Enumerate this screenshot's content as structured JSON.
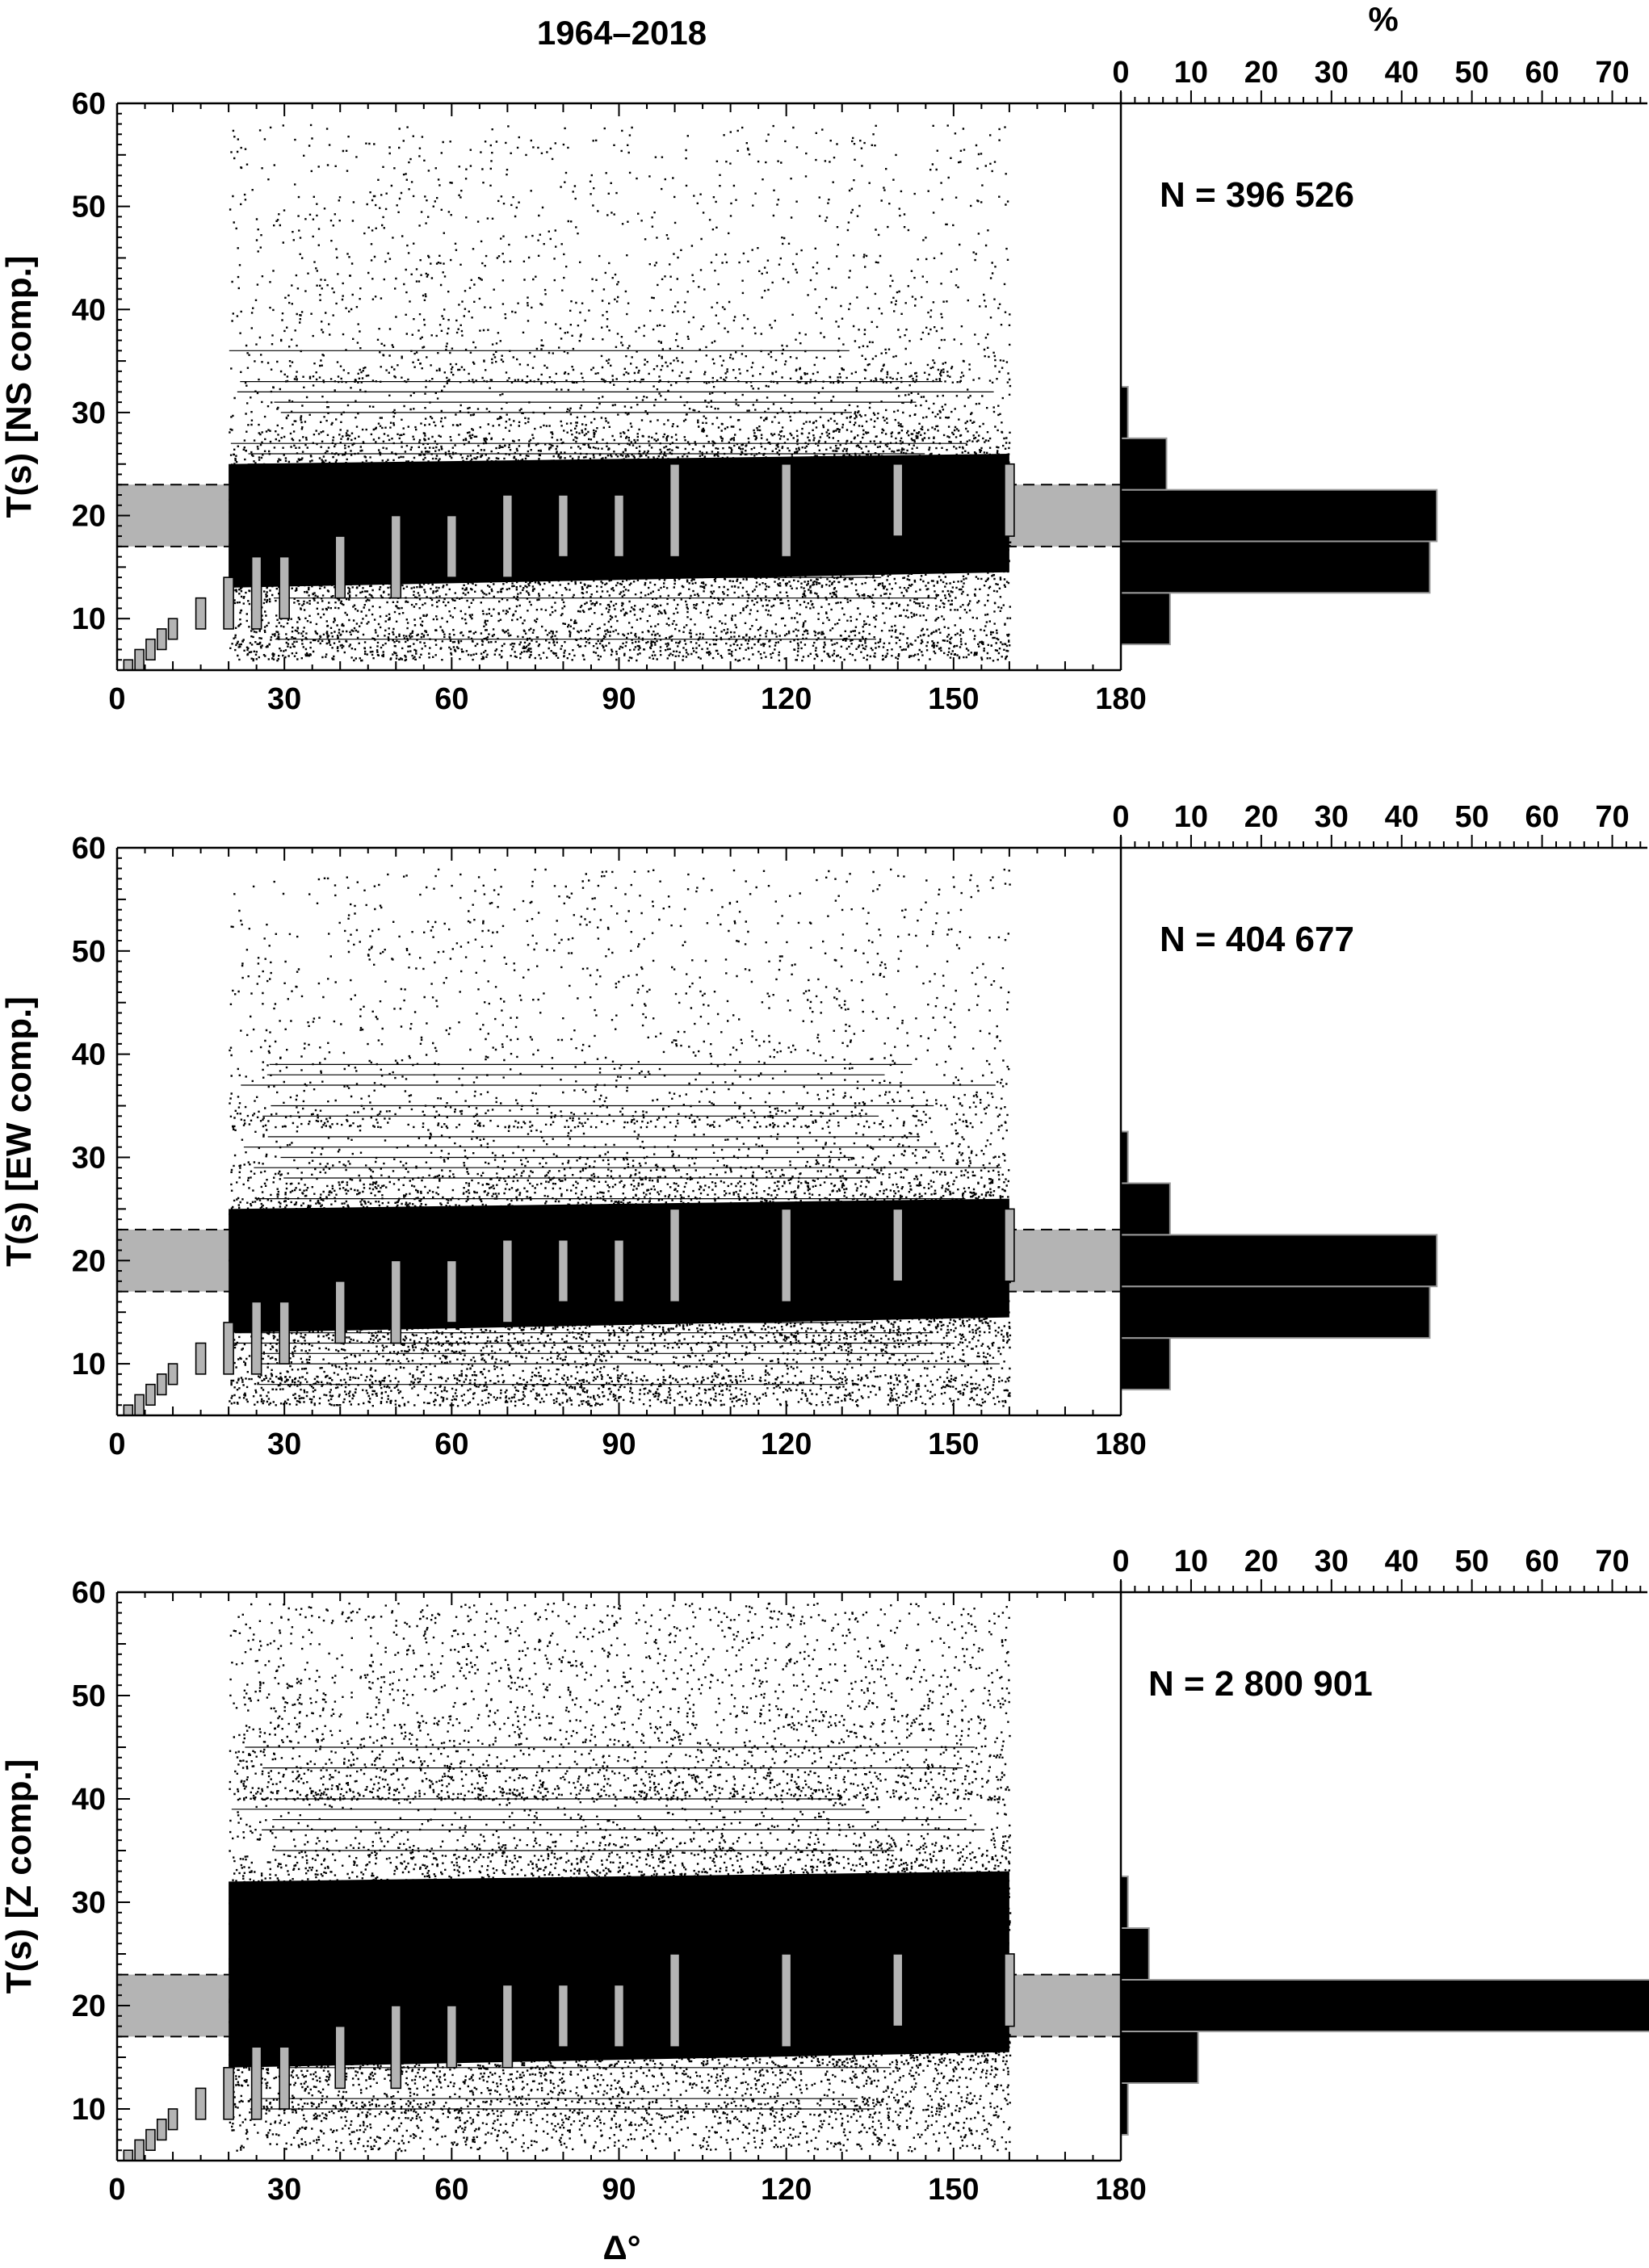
{
  "figure": {
    "title": "1964–2018",
    "xlabel": "Δ°",
    "hist_axis_label": "%"
  },
  "colors": {
    "box": "#b4b4b4",
    "hist": "#000000",
    "point": "#000000",
    "band": "#b4b4b4"
  },
  "chart_data": [
    {
      "type": "scatter",
      "ylabel": "T(s) [NS comp.]",
      "n_label": "N = 396 526",
      "xlim": [
        0,
        180
      ],
      "ylim": [
        5,
        60
      ],
      "xticks": [
        0,
        30,
        60,
        90,
        120,
        150,
        180
      ],
      "yticks": [
        10,
        20,
        30,
        40,
        50,
        60
      ],
      "reference_band": [
        17,
        23
      ],
      "scatter_extent": {
        "x": [
          20,
          160
        ],
        "core_T": [
          13,
          26
        ],
        "dense_T": [
          8,
          33
        ],
        "sparse_T_max": 58
      },
      "period_boxes": [
        {
          "x": 2,
          "lo": 5,
          "hi": 6
        },
        {
          "x": 4,
          "lo": 5,
          "hi": 7
        },
        {
          "x": 6,
          "lo": 6,
          "hi": 8
        },
        {
          "x": 8,
          "lo": 7,
          "hi": 9
        },
        {
          "x": 10,
          "lo": 8,
          "hi": 10
        },
        {
          "x": 15,
          "lo": 9,
          "hi": 12
        },
        {
          "x": 20,
          "lo": 9,
          "hi": 14
        },
        {
          "x": 25,
          "lo": 9,
          "hi": 16
        },
        {
          "x": 30,
          "lo": 10,
          "hi": 16
        },
        {
          "x": 40,
          "lo": 12,
          "hi": 18
        },
        {
          "x": 50,
          "lo": 12,
          "hi": 20
        },
        {
          "x": 60,
          "lo": 14,
          "hi": 20
        },
        {
          "x": 70,
          "lo": 14,
          "hi": 22
        },
        {
          "x": 80,
          "lo": 16,
          "hi": 22
        },
        {
          "x": 90,
          "lo": 16,
          "hi": 22
        },
        {
          "x": 100,
          "lo": 16,
          "hi": 25
        },
        {
          "x": 120,
          "lo": 16,
          "hi": 25
        },
        {
          "x": 140,
          "lo": 18,
          "hi": 25
        },
        {
          "x": 160,
          "lo": 18,
          "hi": 25
        }
      ],
      "histogram": {
        "xlim": [
          0,
          75
        ],
        "xticks": [
          0,
          10,
          20,
          30,
          40,
          50,
          60,
          70
        ],
        "bins": [
          {
            "lo": 7.5,
            "hi": 12.5,
            "pct": 7
          },
          {
            "lo": 12.5,
            "hi": 17.5,
            "pct": 44
          },
          {
            "lo": 17.5,
            "hi": 22.5,
            "pct": 45
          },
          {
            "lo": 22.5,
            "hi": 27.5,
            "pct": 6.5
          },
          {
            "lo": 27.5,
            "hi": 32.5,
            "pct": 1
          }
        ]
      }
    },
    {
      "type": "scatter",
      "ylabel": "T(s) [EW comp.]",
      "n_label": "N = 404 677",
      "xlim": [
        0,
        180
      ],
      "ylim": [
        5,
        60
      ],
      "xticks": [
        0,
        30,
        60,
        90,
        120,
        150,
        180
      ],
      "yticks": [
        10,
        20,
        30,
        40,
        50,
        60
      ],
      "reference_band": [
        17,
        23
      ],
      "scatter_extent": {
        "x": [
          20,
          160
        ],
        "core_T": [
          13,
          26
        ],
        "dense_T": [
          8,
          33
        ],
        "sparse_T_max": 58
      },
      "period_boxes": [
        {
          "x": 2,
          "lo": 5,
          "hi": 6
        },
        {
          "x": 4,
          "lo": 5,
          "hi": 7
        },
        {
          "x": 6,
          "lo": 6,
          "hi": 8
        },
        {
          "x": 8,
          "lo": 7,
          "hi": 9
        },
        {
          "x": 10,
          "lo": 8,
          "hi": 10
        },
        {
          "x": 15,
          "lo": 9,
          "hi": 12
        },
        {
          "x": 20,
          "lo": 9,
          "hi": 14
        },
        {
          "x": 25,
          "lo": 9,
          "hi": 16
        },
        {
          "x": 30,
          "lo": 10,
          "hi": 16
        },
        {
          "x": 40,
          "lo": 12,
          "hi": 18
        },
        {
          "x": 50,
          "lo": 12,
          "hi": 20
        },
        {
          "x": 60,
          "lo": 14,
          "hi": 20
        },
        {
          "x": 70,
          "lo": 14,
          "hi": 22
        },
        {
          "x": 80,
          "lo": 16,
          "hi": 22
        },
        {
          "x": 90,
          "lo": 16,
          "hi": 22
        },
        {
          "x": 100,
          "lo": 16,
          "hi": 25
        },
        {
          "x": 120,
          "lo": 16,
          "hi": 25
        },
        {
          "x": 140,
          "lo": 18,
          "hi": 25
        },
        {
          "x": 160,
          "lo": 18,
          "hi": 25
        }
      ],
      "histogram": {
        "xlim": [
          0,
          75
        ],
        "xticks": [
          0,
          10,
          20,
          30,
          40,
          50,
          60,
          70
        ],
        "bins": [
          {
            "lo": 7.5,
            "hi": 12.5,
            "pct": 7
          },
          {
            "lo": 12.5,
            "hi": 17.5,
            "pct": 44
          },
          {
            "lo": 17.5,
            "hi": 22.5,
            "pct": 45
          },
          {
            "lo": 22.5,
            "hi": 27.5,
            "pct": 7
          },
          {
            "lo": 27.5,
            "hi": 32.5,
            "pct": 1
          }
        ]
      }
    },
    {
      "type": "scatter",
      "ylabel": "T(s) [Z comp.]",
      "n_label": "N = 2 800 901",
      "xlim": [
        0,
        180
      ],
      "ylim": [
        5,
        60
      ],
      "xticks": [
        0,
        30,
        60,
        90,
        120,
        150,
        180
      ],
      "yticks": [
        10,
        20,
        30,
        40,
        50,
        60
      ],
      "reference_band": [
        17,
        23
      ],
      "scatter_extent": {
        "x": [
          20,
          160
        ],
        "core_T": [
          14,
          33
        ],
        "dense_T": [
          10,
          40
        ],
        "sparse_T_max": 59
      },
      "period_boxes": [
        {
          "x": 2,
          "lo": 5,
          "hi": 6
        },
        {
          "x": 4,
          "lo": 5,
          "hi": 7
        },
        {
          "x": 6,
          "lo": 6,
          "hi": 8
        },
        {
          "x": 8,
          "lo": 7,
          "hi": 9
        },
        {
          "x": 10,
          "lo": 8,
          "hi": 10
        },
        {
          "x": 15,
          "lo": 9,
          "hi": 12
        },
        {
          "x": 20,
          "lo": 9,
          "hi": 14
        },
        {
          "x": 25,
          "lo": 9,
          "hi": 16
        },
        {
          "x": 30,
          "lo": 10,
          "hi": 16
        },
        {
          "x": 40,
          "lo": 12,
          "hi": 18
        },
        {
          "x": 50,
          "lo": 12,
          "hi": 20
        },
        {
          "x": 60,
          "lo": 14,
          "hi": 20
        },
        {
          "x": 70,
          "lo": 14,
          "hi": 22
        },
        {
          "x": 80,
          "lo": 16,
          "hi": 22
        },
        {
          "x": 90,
          "lo": 16,
          "hi": 22
        },
        {
          "x": 100,
          "lo": 16,
          "hi": 25
        },
        {
          "x": 120,
          "lo": 16,
          "hi": 25
        },
        {
          "x": 140,
          "lo": 18,
          "hi": 25
        },
        {
          "x": 160,
          "lo": 18,
          "hi": 25
        }
      ],
      "histogram": {
        "xlim": [
          0,
          75
        ],
        "xticks": [
          0,
          10,
          20,
          30,
          40,
          50,
          60,
          70
        ],
        "bins": [
          {
            "lo": 7.5,
            "hi": 12.5,
            "pct": 1
          },
          {
            "lo": 12.5,
            "hi": 17.5,
            "pct": 11
          },
          {
            "lo": 17.5,
            "hi": 22.5,
            "pct": 79
          },
          {
            "lo": 22.5,
            "hi": 27.5,
            "pct": 4
          },
          {
            "lo": 27.5,
            "hi": 32.5,
            "pct": 1
          }
        ]
      }
    }
  ]
}
